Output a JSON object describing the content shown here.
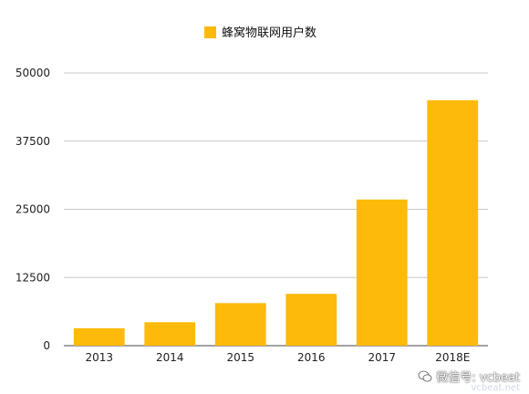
{
  "chart_data": {
    "type": "bar",
    "title": "",
    "xlabel": "",
    "ylabel": "",
    "categories": [
      "2013",
      "2014",
      "2015",
      "2016",
      "2017",
      "2018E"
    ],
    "series": [
      {
        "name": "蜂窝物联网用户数",
        "values": [
          3200,
          4300,
          7800,
          9500,
          26800,
          45000
        ]
      }
    ],
    "ylim": [
      0,
      50000
    ],
    "yticks": [
      0,
      12500,
      25000,
      37500,
      50000
    ],
    "grid": true,
    "legend_position": "top-center",
    "bar_color": "#FDBA0A",
    "grid_color": "#C8C8C8"
  },
  "watermark": {
    "text": "微信号: vcbeat",
    "sub": "vcbeat.net",
    "icon": "wechat-icon"
  }
}
